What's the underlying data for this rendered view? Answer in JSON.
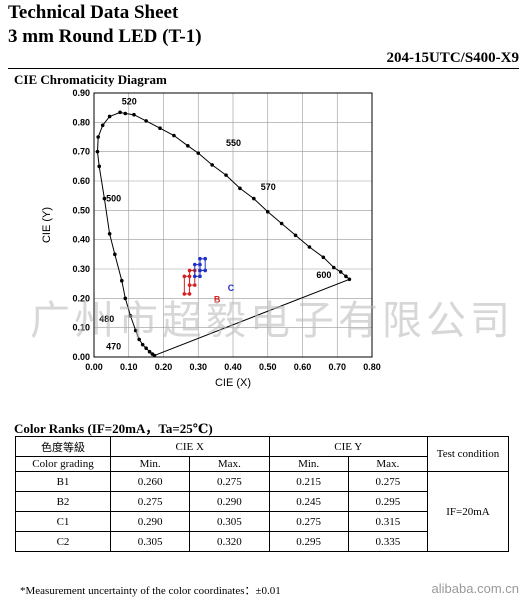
{
  "header": {
    "title_line1": "Technical Data Sheet",
    "title_line2": "3 mm Round LED (T-1)",
    "part_number": "204-15UTC/S400-X9"
  },
  "cie_section": {
    "title": "CIE Chromaticity Diagram"
  },
  "chart_data": {
    "type": "scatter",
    "xlabel": "CIE (X)",
    "ylabel": "CIE (Y)",
    "xlim": [
      0.0,
      0.8
    ],
    "ylim": [
      0.0,
      0.9
    ],
    "grid": true,
    "x_ticks": [
      "0.00",
      "0.10",
      "0.20",
      "0.30",
      "0.40",
      "0.50",
      "0.60",
      "0.70",
      "0.80"
    ],
    "y_ticks": [
      "0.00",
      "0.10",
      "0.20",
      "0.30",
      "0.40",
      "0.50",
      "0.60",
      "0.70",
      "0.80",
      "0.90"
    ],
    "spectral_locus": [
      [
        0.174,
        0.005
      ],
      [
        0.168,
        0.01
      ],
      [
        0.16,
        0.018
      ],
      [
        0.15,
        0.03
      ],
      [
        0.14,
        0.042
      ],
      [
        0.13,
        0.06
      ],
      [
        0.12,
        0.09
      ],
      [
        0.105,
        0.14
      ],
      [
        0.09,
        0.2
      ],
      [
        0.08,
        0.26
      ],
      [
        0.06,
        0.35
      ],
      [
        0.045,
        0.42
      ],
      [
        0.03,
        0.54
      ],
      [
        0.015,
        0.65
      ],
      [
        0.01,
        0.7
      ],
      [
        0.012,
        0.75
      ],
      [
        0.025,
        0.79
      ],
      [
        0.045,
        0.82
      ],
      [
        0.075,
        0.834
      ],
      [
        0.09,
        0.83
      ],
      [
        0.115,
        0.826
      ],
      [
        0.15,
        0.805
      ],
      [
        0.19,
        0.78
      ],
      [
        0.23,
        0.755
      ],
      [
        0.27,
        0.72
      ],
      [
        0.3,
        0.695
      ],
      [
        0.34,
        0.655
      ],
      [
        0.38,
        0.62
      ],
      [
        0.42,
        0.575
      ],
      [
        0.46,
        0.54
      ],
      [
        0.5,
        0.495
      ],
      [
        0.54,
        0.455
      ],
      [
        0.58,
        0.415
      ],
      [
        0.62,
        0.375
      ],
      [
        0.66,
        0.34
      ],
      [
        0.69,
        0.305
      ],
      [
        0.71,
        0.29
      ],
      [
        0.725,
        0.275
      ],
      [
        0.735,
        0.265
      ]
    ],
    "wavelength_labels": [
      {
        "text": "520",
        "x": 0.08,
        "y": 0.86
      },
      {
        "text": "550",
        "x": 0.38,
        "y": 0.72
      },
      {
        "text": "570",
        "x": 0.48,
        "y": 0.57
      },
      {
        "text": "600",
        "x": 0.64,
        "y": 0.27
      },
      {
        "text": "500",
        "x": 0.035,
        "y": 0.53
      },
      {
        "text": "480",
        "x": 0.015,
        "y": 0.12
      },
      {
        "text": "470",
        "x": 0.035,
        "y": 0.025
      }
    ],
    "ranks": [
      {
        "name": "B1",
        "x": [
          0.26,
          0.275
        ],
        "y": [
          0.215,
          0.275
        ],
        "color": "#d32020"
      },
      {
        "name": "B2",
        "x": [
          0.275,
          0.29
        ],
        "y": [
          0.245,
          0.295
        ],
        "color": "#d32020"
      },
      {
        "name": "C1",
        "x": [
          0.29,
          0.305
        ],
        "y": [
          0.275,
          0.315
        ],
        "color": "#2030c8"
      },
      {
        "name": "C2",
        "x": [
          0.305,
          0.32
        ],
        "y": [
          0.295,
          0.335
        ],
        "color": "#2030c8"
      }
    ],
    "rank_labels": [
      {
        "text": "B",
        "color": "#d32020",
        "x": 0.345,
        "y": 0.185
      },
      {
        "text": "C",
        "color": "#2030c8",
        "x": 0.385,
        "y": 0.225
      }
    ]
  },
  "watermark": {
    "text": "广州市超毅电子有限公司"
  },
  "ranks_section": {
    "title": "Color Ranks (IF=20mA，Ta=25℃)",
    "headers": {
      "grading_cn": "色度等級",
      "grading_en": "Color grading",
      "cie_x": "CIE X",
      "cie_y": "CIE Y",
      "min": "Min.",
      "max": "Max.",
      "test_condition": "Test condition"
    },
    "rows": [
      {
        "grade": "B1",
        "x_min": "0.260",
        "x_max": "0.275",
        "y_min": "0.215",
        "y_max": "0.275"
      },
      {
        "grade": "B2",
        "x_min": "0.275",
        "x_max": "0.290",
        "y_min": "0.245",
        "y_max": "0.295"
      },
      {
        "grade": "C1",
        "x_min": "0.290",
        "x_max": "0.305",
        "y_min": "0.275",
        "y_max": "0.315"
      },
      {
        "grade": "C2",
        "x_min": "0.305",
        "x_max": "0.320",
        "y_min": "0.295",
        "y_max": "0.335"
      }
    ],
    "test_condition_value": "IF=20mA"
  },
  "footer": {
    "note": "*Measurement uncertainty of the color coordinates：±0.01",
    "site": "alibaba.com.cn"
  }
}
